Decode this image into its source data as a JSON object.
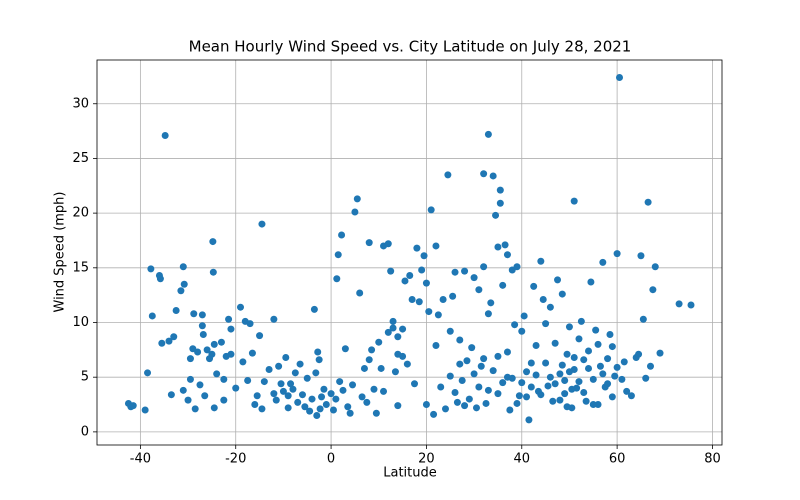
{
  "chart_data": {
    "type": "scatter",
    "title": "Mean Hourly Wind Speed vs. City Latitude  on July 28, 2021",
    "x_label": "Latitude",
    "y_label": "Wind Speed (mph)",
    "color": "#1f77b4",
    "grid": true,
    "xlim": [
      -49.1,
      82.0
    ],
    "ylim": [
      -1.2,
      34.0
    ],
    "xticks": [
      -40,
      -20,
      0,
      20,
      40,
      60,
      80
    ],
    "yticks": [
      0,
      5,
      10,
      15,
      20,
      25,
      30
    ],
    "x": [
      -42.5,
      -42,
      -41.5,
      -39,
      -38.5,
      -37.8,
      -37.5,
      -36,
      -35.8,
      -35.5,
      -34.8,
      -34,
      -33.5,
      -33,
      -32.5,
      -31.5,
      -31,
      -30.8,
      -31,
      -30,
      -29.5,
      -29.5,
      -29,
      -28.8,
      -28.5,
      -28,
      -27.5,
      -27,
      -27,
      -26.8,
      -26.5,
      -26,
      -25.5,
      -25,
      -24.8,
      -24.7,
      -24.5,
      -24.5,
      -24,
      -23,
      -22.5,
      -22.5,
      -22,
      -21.5,
      -21,
      -21,
      -20,
      -19,
      -18.5,
      -18,
      -17.5,
      -17,
      -16.5,
      -16,
      -15.5,
      -15,
      -14.5,
      -14.5,
      -14,
      -13,
      -12,
      -12,
      -11.5,
      -11,
      -10.5,
      -10,
      -9.5,
      -9,
      -9,
      -8.5,
      -8,
      -7.5,
      -7,
      -6.5,
      -6,
      -5.5,
      -5,
      -4.5,
      -4,
      -3.5,
      -3.2,
      -3,
      -2.8,
      -2.5,
      -2.3,
      -2,
      -1.5,
      -1,
      0,
      0.5,
      1,
      1.2,
      1.5,
      1.8,
      2.2,
      2.5,
      3,
      3.5,
      4,
      4.5,
      5,
      5.5,
      6,
      6.5,
      7,
      7.5,
      8,
      8,
      8.5,
      9,
      9.5,
      10,
      10.5,
      11,
      11,
      12,
      12,
      12.5,
      13,
      13.5,
      14,
      14,
      15,
      15.5,
      16,
      16.5,
      17,
      17.5,
      18,
      18.5,
      19,
      19.5,
      20,
      20,
      20.5,
      21,
      21.5,
      22,
      22.5,
      23,
      23.5,
      24,
      24.5,
      25,
      25.5,
      26,
      26.5,
      27,
      27.5,
      28,
      28.5,
      29,
      29.5,
      30,
      30.5,
      31,
      31.5,
      32,
      32,
      32.5,
      33,
      33,
      33.5,
      34,
      34.5,
      35,
      35,
      35.5,
      35.5,
      36,
      36.5,
      37,
      37,
      37.5,
      38,
      38.5,
      39,
      39.5,
      40,
      40.5,
      41,
      41.5,
      42,
      42.5,
      43,
      43.5,
      44,
      44.5,
      45,
      45.5,
      46,
      46.5,
      47,
      47.5,
      48,
      48.5,
      49,
      49.5,
      50,
      50.5,
      51,
      51,
      51.5,
      52,
      52.5,
      53,
      53.5,
      54,
      54.5,
      55,
      55.5,
      56,
      56.5,
      57,
      57.5,
      58,
      58.5,
      59,
      59.5,
      60,
      60.5,
      61,
      61.5,
      62,
      63,
      64,
      64.5,
      65,
      65.5,
      66,
      66.5,
      67,
      67.5,
      68,
      69,
      73,
      75.5,
      40,
      41,
      42,
      43,
      44,
      45,
      46,
      47,
      48,
      48.5,
      49,
      49.5,
      50,
      50.5,
      51,
      52,
      53,
      54,
      55,
      56,
      57,
      58,
      59,
      60,
      30,
      31,
      32,
      33,
      34,
      35,
      36,
      37,
      38,
      39,
      25,
      26,
      27,
      28,
      22,
      13,
      14,
      15
    ],
    "values": [
      2.6,
      2.3,
      2.4,
      2,
      5.4,
      14.9,
      10.6,
      14.3,
      14,
      8.1,
      27.1,
      8.3,
      3.4,
      8.7,
      11.1,
      12.9,
      15.1,
      13.5,
      3.8,
      2.9,
      4.8,
      6.7,
      7.6,
      10.8,
      2.1,
      7.3,
      4.3,
      9.7,
      10.7,
      8.9,
      3.3,
      7.5,
      6.7,
      7.1,
      17.4,
      14.6,
      8.0,
      2.2,
      5.3,
      8.2,
      4.8,
      2.9,
      6.9,
      10.3,
      7.1,
      9.4,
      4.0,
      11.4,
      6.4,
      10.1,
      4.7,
      9.9,
      7.2,
      2.5,
      3.3,
      8.8,
      19.0,
      2.1,
      4.6,
      5.7,
      10.3,
      3.5,
      2.9,
      6.0,
      4.4,
      3.7,
      6.8,
      2.2,
      3.3,
      4.4,
      3.9,
      5.4,
      2.7,
      6.2,
      3.4,
      2.3,
      4.9,
      1.9,
      3.0,
      11.2,
      5.4,
      1.5,
      7.3,
      6.6,
      2.1,
      3.2,
      3.9,
      2.5,
      3.5,
      2.0,
      3.0,
      14.0,
      16.2,
      4.6,
      18.0,
      3.8,
      7.6,
      2.3,
      1.7,
      4.3,
      20.1,
      21.3,
      12.7,
      3.2,
      5.8,
      2.7,
      17.3,
      6.6,
      7.5,
      3.9,
      1.7,
      8.2,
      5.8,
      17.0,
      3.7,
      17.2,
      9.1,
      14.7,
      10.1,
      5.5,
      7.1,
      2.4,
      9.4,
      13.8,
      6.2,
      14.3,
      12.1,
      4.4,
      16.8,
      11.9,
      14.8,
      16.1,
      13.6,
      2.5,
      11.0,
      20.3,
      1.6,
      17.0,
      10.7,
      4.1,
      12.1,
      2.1,
      23.5,
      9.2,
      12.4,
      14.6,
      2.7,
      8.4,
      4.7,
      14.7,
      6.5,
      3.0,
      7.7,
      14.1,
      2.2,
      13.0,
      6.0,
      15.1,
      23.6,
      2.6,
      27.2,
      10.8,
      11.8,
      23.4,
      19.8,
      16.9,
      3.5,
      22.1,
      20.9,
      13.4,
      17.1,
      16.2,
      5.0,
      2.0,
      14.8,
      9.8,
      15.1,
      3.3,
      9.2,
      10.6,
      5.5,
      1.1,
      6.3,
      13.3,
      7.9,
      3.7,
      15.6,
      12.1,
      9.9,
      4.2,
      11.4,
      2.8,
      8.1,
      13.9,
      5.3,
      12.6,
      3.5,
      7.1,
      9.6,
      2.2,
      21.1,
      5.7,
      4.0,
      8.5,
      10.1,
      6.6,
      2.8,
      7.4,
      13.7,
      4.8,
      9.3,
      2.5,
      6.0,
      15.5,
      4.1,
      6.7,
      8.9,
      3.2,
      5.1,
      16.3,
      32.4,
      4.8,
      6.4,
      3.7,
      3.3,
      6.8,
      7.1,
      16.1,
      10.3,
      4.9,
      21.0,
      6.0,
      13.0,
      15.1,
      7.2,
      11.7,
      11.6,
      4.5,
      3.2,
      4.1,
      5.2,
      3.4,
      6.3,
      5.0,
      4.4,
      2.9,
      6.1,
      4.7,
      2.3,
      5.5,
      3.9,
      6.8,
      4.6,
      3.6,
      5.8,
      2.5,
      8.0,
      5.3,
      4.4,
      7.8,
      5.9,
      5.3,
      4.1,
      6.7,
      3.8,
      5.6,
      6.9,
      4.5,
      7.3,
      4.9,
      2.6,
      5.1,
      3.6,
      6.2,
      2.4,
      7.9,
      9.5,
      8.7,
      6.9
    ]
  }
}
